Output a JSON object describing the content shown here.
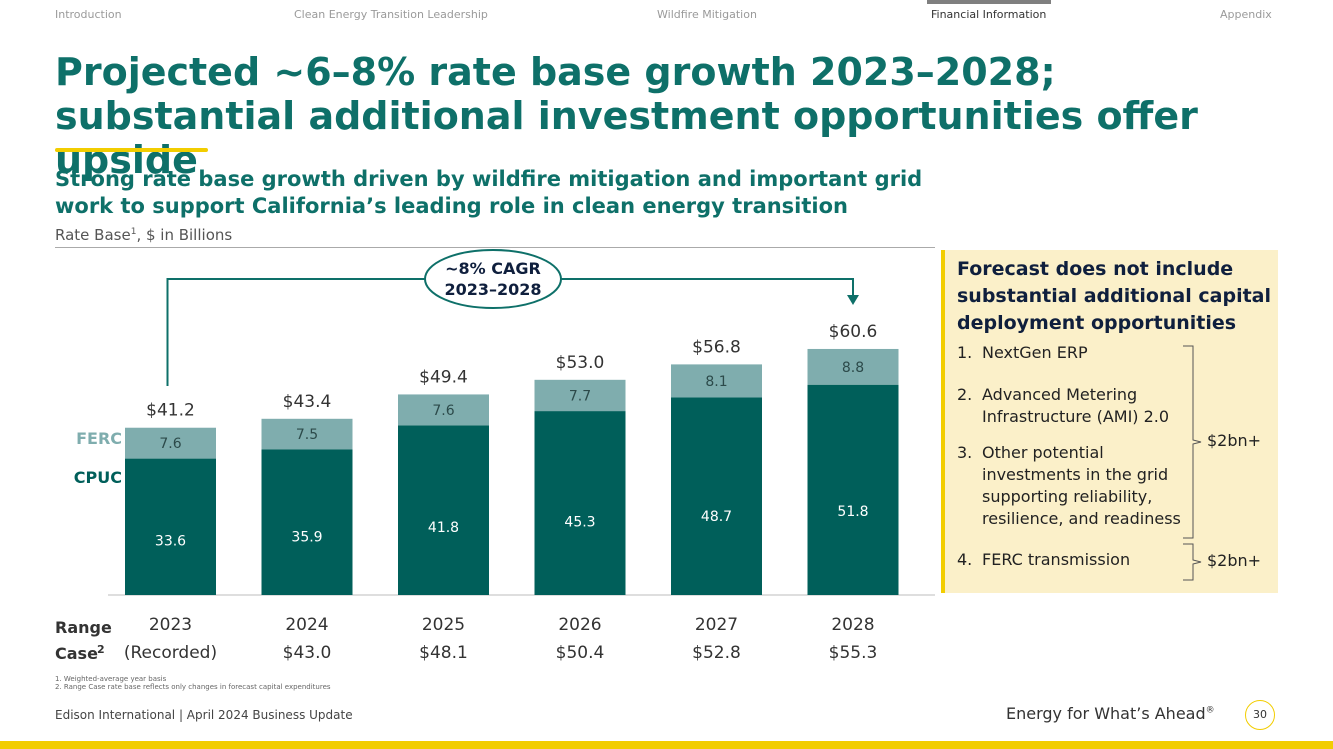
{
  "nav": {
    "items": [
      "Introduction",
      "Clean Energy Transition Leadership",
      "Wildfire Mitigation",
      "Financial Information",
      "Appendix"
    ],
    "active": "Financial Information"
  },
  "title": "Projected ~6–8% rate base growth 2023–2028; substantial additional investment opportunities offer upside",
  "subtitle": "Strong rate base growth driven by wildfire mitigation and important grid work to support California’s leading role in clean energy transition",
  "chart_subtitle": {
    "text": "Rate Base",
    "sup": "1",
    "suffix": ", $ in Billions"
  },
  "chart_data": {
    "type": "bar",
    "stacked": true,
    "categories": [
      "2023",
      "2024",
      "2025",
      "2026",
      "2027",
      "2028"
    ],
    "series": [
      {
        "name": "CPUC",
        "values": [
          33.6,
          35.9,
          41.8,
          45.3,
          48.7,
          51.8
        ],
        "color": "#005f5a"
      },
      {
        "name": "FERC",
        "values": [
          7.6,
          7.5,
          7.6,
          7.7,
          8.1,
          8.8
        ],
        "color": "#7fadae"
      }
    ],
    "totals": [
      "$41.2",
      "$43.4",
      "$49.4",
      "$53.0",
      "$56.8",
      "$60.6"
    ],
    "cagr_label": [
      "~8% CAGR",
      "2023–2028"
    ],
    "range_case": {
      "label": [
        "Range",
        "Case"
      ],
      "sup": "2",
      "values": [
        "(Recorded)",
        "$43.0",
        "$48.1",
        "$50.4",
        "$52.8",
        "$55.3"
      ]
    },
    "ylim": [
      0,
      66
    ]
  },
  "callout": {
    "title": "Forecast does not include substantial additional capital deployment opportunities",
    "items": [
      {
        "num": "1.",
        "text": "NextGen ERP"
      },
      {
        "num": "2.",
        "text": "Advanced Metering Infrastructure (AMI) 2.0"
      },
      {
        "num": "3.",
        "text": "Other potential investments in the grid supporting reliability, resilience, and readiness"
      },
      {
        "num": "4.",
        "text": "FERC transmission"
      }
    ],
    "brace_labels": [
      "$2bn+",
      "$2bn+"
    ]
  },
  "footnotes": [
    "1.   Weighted-average year basis",
    "2.   Range Case rate base reflects only changes in forecast capital expenditures"
  ],
  "footer": {
    "left": "Edison International | April 2024 Business Update",
    "right": "Energy for What’s Ahead",
    "right_sup": "®",
    "page": "30"
  },
  "colors": {
    "accent_green": "#0e7069",
    "cpuc": "#005f5a",
    "ferc": "#7fadae",
    "yellow": "#f2cd00",
    "callout_bg": "#fbf0c9"
  }
}
